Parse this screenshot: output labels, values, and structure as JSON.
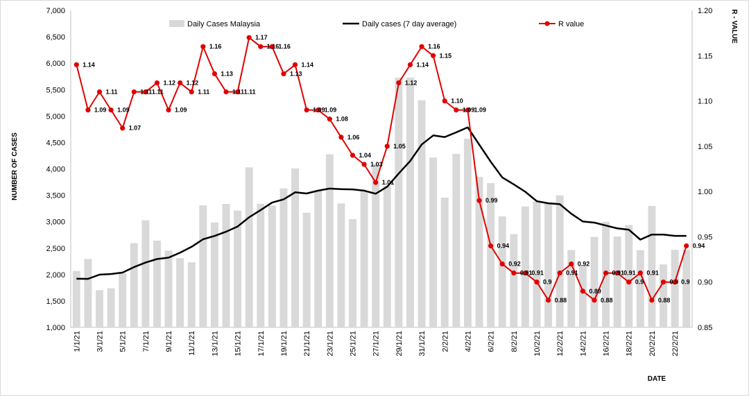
{
  "chart_data": {
    "type": "bar+line",
    "xlabel": "DATE",
    "ylabel": "NUMBER OF CASES",
    "y2label": "R - VALUE",
    "ylim": [
      1000,
      7000
    ],
    "y2lim": [
      0.85,
      1.2
    ],
    "yticks": [
      "1,000",
      "1,500",
      "2,000",
      "2,500",
      "3,000",
      "3,500",
      "4,000",
      "4,500",
      "5,000",
      "5,500",
      "6,000",
      "6,500",
      "7,000"
    ],
    "y2ticks": [
      "0.85",
      "0.90",
      "0.95",
      "1.00",
      "1.05",
      "1.10",
      "1.15",
      "1.20"
    ],
    "categories": [
      "1/1/21",
      "2/1/21",
      "3/1/21",
      "4/1/21",
      "5/1/21",
      "6/1/21",
      "7/1/21",
      "8/1/21",
      "9/1/21",
      "10/1/21",
      "11/1/21",
      "12/1/21",
      "13/1/21",
      "14/1/21",
      "15/1/21",
      "16/1/21",
      "17/1/21",
      "18/1/21",
      "19/1/21",
      "20/1/21",
      "21/1/21",
      "22/1/21",
      "23/1/21",
      "24/1/21",
      "25/1/21",
      "26/1/21",
      "27/1/21",
      "28/1/21",
      "29/1/21",
      "30/1/21",
      "31/1/21",
      "1/2/21",
      "2/2/21",
      "3/2/21",
      "4/2/21",
      "5/2/21",
      "6/2/21",
      "7/2/21",
      "8/2/21",
      "9/2/21",
      "10/2/21",
      "11/2/21",
      "12/2/21",
      "13/2/21",
      "14/2/21",
      "15/2/21",
      "16/2/21",
      "17/2/21",
      "18/2/21",
      "19/2/21",
      "20/2/21",
      "21/2/21",
      "22/2/21",
      "23/2/21"
    ],
    "tick_labels": [
      "1/1/21",
      "3/1/21",
      "5/1/21",
      "7/1/21",
      "9/1/21",
      "11/1/21",
      "13/1/21",
      "15/1/21",
      "17/1/21",
      "19/1/21",
      "21/1/21",
      "23/1/21",
      "25/1/21",
      "27/1/21",
      "29/1/21",
      "31/1/21",
      "2/2/21",
      "4/2/21",
      "6/2/21",
      "8/2/21",
      "10/2/21",
      "12/2/21",
      "14/2/21",
      "16/2/21",
      "18/2/21",
      "20/2/21",
      "22/2/21"
    ],
    "series": [
      {
        "name": "Daily Cases Malaysia",
        "kind": "bar",
        "color": "#d9d9d9",
        "values": [
          2068,
          2295,
          1704,
          1741,
          2027,
          2593,
          3027,
          2643,
          2451,
          2309,
          2232,
          3309,
          2985,
          3337,
          3211,
          4029,
          3339,
          3306,
          3631,
          4008,
          3170,
          3585,
          4275,
          3346,
          3048,
          3585,
          4094,
          3680,
          5725,
          5728,
          5298,
          4214,
          3455,
          4284,
          4571,
          3847,
          3731,
          3100,
          2764,
          3288,
          3384,
          3342,
          3499,
          2464,
          2176,
          2712,
          2998,
          2720,
          2936,
          2461,
          3297,
          2192,
          2468,
          2468
        ]
      },
      {
        "name": "Daily cases (7 day average)",
        "kind": "line",
        "color": "#000000",
        "values": [
          1920,
          1918,
          1998,
          2010,
          2037,
          2141,
          2226,
          2293,
          2320,
          2413,
          2524,
          2668,
          2730,
          2810,
          2909,
          3084,
          3220,
          3362,
          3424,
          3556,
          3534,
          3588,
          3627,
          3617,
          3611,
          3588,
          3530,
          3663,
          3912,
          4150,
          4462,
          4633,
          4602,
          4692,
          4787,
          4459,
          4135,
          3838,
          3707,
          3567,
          3388,
          3349,
          3332,
          3151,
          3004,
          2982,
          2928,
          2873,
          2848,
          2661,
          2757,
          2756,
          2732,
          2732
        ]
      },
      {
        "name": "R value",
        "kind": "line-markers",
        "axis": "right",
        "color": "#e00000",
        "values": [
          1.14,
          1.09,
          1.11,
          1.09,
          1.07,
          1.11,
          1.11,
          1.12,
          1.09,
          1.12,
          1.11,
          1.16,
          1.13,
          1.11,
          1.11,
          1.17,
          1.16,
          1.16,
          1.13,
          1.14,
          1.09,
          1.09,
          1.08,
          1.06,
          1.04,
          1.03,
          1.01,
          1.05,
          1.12,
          1.14,
          1.16,
          1.15,
          1.1,
          1.09,
          1.09,
          0.99,
          0.94,
          0.92,
          0.91,
          0.91,
          0.9,
          0.88,
          0.91,
          0.92,
          0.89,
          0.88,
          0.91,
          0.91,
          0.9,
          0.91,
          0.88,
          0.9,
          0.9,
          0.94
        ],
        "labels": [
          "1.14",
          "1.09",
          "1.11",
          "1.09",
          "1.07",
          "1.11",
          "1.11",
          "1.12",
          "1.09",
          "1.12",
          "1.11",
          "1.16",
          "1.13",
          "1.11",
          "1.11",
          "1.17",
          "1.16",
          "1.16",
          "1.13",
          "1.14",
          "1.09",
          "1.09",
          "1.08",
          "1.06",
          "1.04",
          "1.03",
          "1.01",
          "1.05",
          "1.12",
          "1.14",
          "1.16",
          "1.15",
          "1.10",
          "1.09",
          "1.09",
          "0.99",
          "0.94",
          "0.92",
          "0.91",
          "0.91",
          "0.9",
          "0.88",
          "0.91",
          "0.92",
          "0.89",
          "0.88",
          "0.91",
          "0.91",
          "0.9",
          "0.91",
          "0.88",
          "0.9",
          "0.9",
          "0.94"
        ]
      }
    ]
  }
}
